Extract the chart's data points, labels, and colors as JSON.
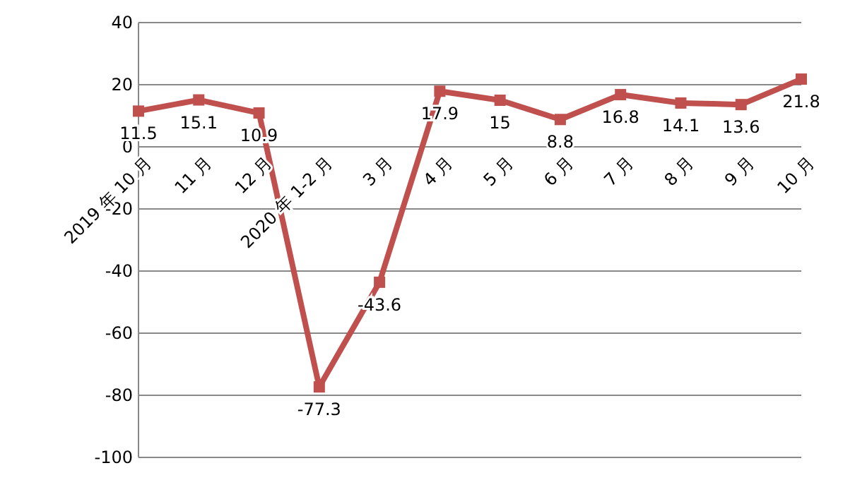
{
  "chart_data": {
    "type": "line",
    "categories": [
      "2019 年 10 月",
      "11 月",
      "12 月",
      "2020 年 1-2 月",
      "3 月",
      "4 月",
      "5 月",
      "6 月",
      "7 月",
      "8 月",
      "9 月",
      "10 月"
    ],
    "series": [
      {
        "color": "#c0504d",
        "values": [
          11.5,
          15.1,
          10.9,
          -77.3,
          -43.6,
          17.9,
          15,
          8.8,
          16.8,
          14.1,
          13.6,
          21.8
        ]
      }
    ],
    "ylim": [
      -100,
      40
    ],
    "yticks": [
      -100,
      -80,
      -60,
      -40,
      -20,
      0,
      20,
      40
    ],
    "grid": "y",
    "marker": "square",
    "line_style": "solid",
    "data_labels": true
  }
}
